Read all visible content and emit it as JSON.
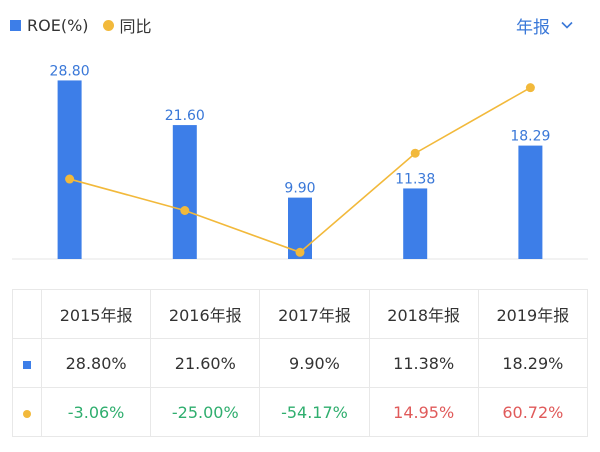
{
  "legend": {
    "bar_label": "ROE(%)",
    "line_label": "同比"
  },
  "period_selector": {
    "label": "年报"
  },
  "colors": {
    "bar": "#3d7ee8",
    "line": "#f2b93b",
    "bar_label": "#3a78d8",
    "positive": "#e05a5a",
    "negative": "#2fae6e"
  },
  "chart_data": {
    "type": "bar",
    "categories": [
      "2015年报",
      "2016年报",
      "2017年报",
      "2018年报",
      "2019年报"
    ],
    "series": [
      {
        "name": "ROE(%)",
        "type": "bar",
        "values": [
          28.8,
          21.6,
          9.9,
          11.38,
          18.29
        ],
        "data_labels": [
          "28.80",
          "21.60",
          "9.90",
          "11.38",
          "18.29"
        ]
      },
      {
        "name": "同比",
        "type": "line",
        "values": [
          -3.06,
          -25.0,
          -54.17,
          14.95,
          60.72
        ]
      }
    ],
    "ylim_bar": [
      0,
      30
    ],
    "ylim_line": [
      -70,
      80
    ],
    "grid": false,
    "legend_position": "top-left"
  },
  "table": {
    "headers": [
      "2015年报",
      "2016年报",
      "2017年报",
      "2018年报",
      "2019年报"
    ],
    "roe_row": [
      "28.80%",
      "21.60%",
      "9.90%",
      "11.38%",
      "18.29%"
    ],
    "yoy_row": [
      "-3.06%",
      "-25.00%",
      "-54.17%",
      "14.95%",
      "60.72%"
    ]
  }
}
